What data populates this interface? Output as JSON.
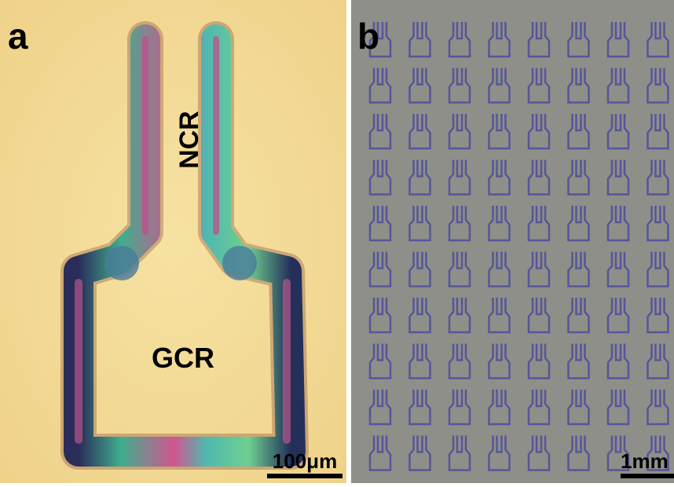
{
  "panels": [
    {
      "label": "a",
      "annotations": [
        "NCR",
        "GCR"
      ],
      "scale_bar": "100μm"
    },
    {
      "label": "b",
      "scale_bar": "1mm"
    }
  ]
}
